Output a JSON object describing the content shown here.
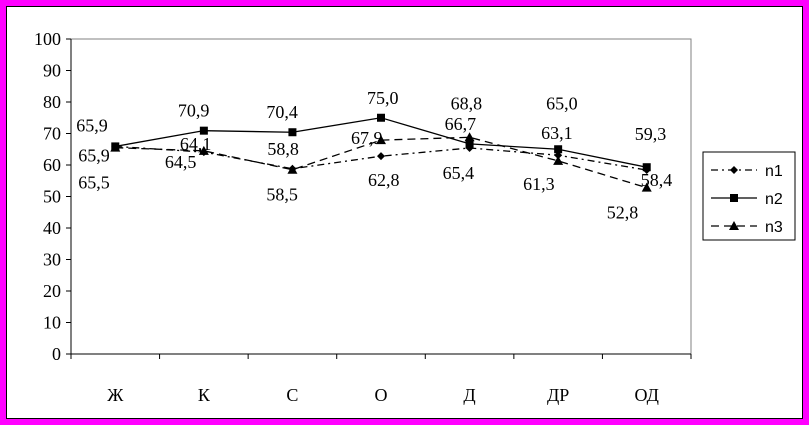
{
  "chart_data": {
    "type": "line",
    "categories": [
      "Ж",
      "К",
      "С",
      "О",
      "Д",
      "ДР",
      "ОД"
    ],
    "ylim": [
      0,
      100
    ],
    "yticks": [
      0,
      10,
      20,
      30,
      40,
      50,
      60,
      70,
      80,
      90,
      100
    ],
    "grid": false,
    "legend_position": "right",
    "series": [
      {
        "name": "n1",
        "values": [
          65.9,
          64.1,
          58.8,
          62.8,
          65.4,
          63.1,
          58.4
        ],
        "labels": [
          "65,9",
          "64,1",
          "58,8",
          "62,8",
          "65,4",
          "63,1",
          "58,4"
        ],
        "marker": "diamond",
        "dash": "dashdot",
        "color": "#000000"
      },
      {
        "name": "n2",
        "values": [
          65.9,
          70.9,
          70.4,
          75.0,
          66.7,
          65.0,
          59.3
        ],
        "labels": [
          "65,9",
          "70,9",
          "70,4",
          "75,0",
          "66,7",
          "65,0",
          "59,3"
        ],
        "marker": "square",
        "dash": "solid",
        "color": "#000000"
      },
      {
        "name": "n3",
        "values": [
          65.5,
          64.5,
          58.5,
          67.9,
          68.8,
          61.3,
          52.8
        ],
        "labels": [
          "65,5",
          "64,5",
          "58,5",
          "67,9",
          "68,8",
          "61,3",
          "52,8"
        ],
        "marker": "triangle",
        "dash": "dashed",
        "color": "#000000"
      }
    ]
  },
  "colors": {
    "border": "#FF00FF",
    "background": "#FFFFFF",
    "ink": "#000000"
  }
}
